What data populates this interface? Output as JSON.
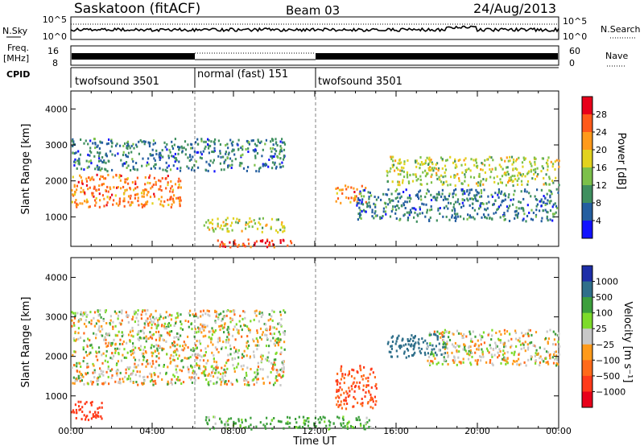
{
  "header": {
    "station": "Saskatoon (fitACF)",
    "beam": "Beam 03",
    "date": "24/Aug/2013"
  },
  "noise_panel": {
    "left_label": "N.Sky",
    "right_label": "N.Search",
    "ticks": [
      "10^5",
      "10^0"
    ]
  },
  "freq_panel": {
    "label_line1": "Freq.",
    "label_line2": "[MHz]",
    "left_ticks": [
      "16",
      "8"
    ],
    "right_ticks": [
      "60",
      "0"
    ],
    "right_label": "Nave"
  },
  "cpid": {
    "label": "CPID",
    "segments": [
      "twofsound 3501",
      "normal (fast) 151",
      "twofsound 3501"
    ]
  },
  "axes": {
    "ylabel": "Slant Range [km]",
    "xlabel": "Time UT",
    "yticks": [
      "4000",
      "3000",
      "2000",
      "1000"
    ],
    "xticks": [
      "00:00",
      "04:00",
      "08:00",
      "12:00",
      "16:00",
      "20:00",
      "00:00"
    ]
  },
  "power_colorbar": {
    "label": "Power [dB]",
    "ticks": [
      "28",
      "24",
      "20",
      "16",
      "12",
      "8",
      "4"
    ],
    "colors": [
      "#e8001a",
      "#ff5a1a",
      "#ff9a1a",
      "#e2d21e",
      "#7cc04a",
      "#3f8f5f",
      "#245ea0",
      "#1212ff"
    ]
  },
  "velocity_colorbar": {
    "label": "Velocity [m s⁻¹]",
    "ticks": [
      "1000",
      "500",
      "100",
      "25",
      "−25",
      "−100",
      "−500",
      "−1000"
    ],
    "colors": [
      "#1d2ea8",
      "#2f6f8a",
      "#3c9f3c",
      "#7ddb2a",
      "#c8c8c8",
      "#ff9a1a",
      "#ff6a1a",
      "#ff3a1a",
      "#e8001a"
    ]
  },
  "chart_data": [
    {
      "type": "heatmap",
      "title": "Power [dB]",
      "xlabel": "Time UT",
      "ylabel": "Slant Range [km]",
      "xlim": [
        0,
        24
      ],
      "ylim": [
        180,
        4500
      ],
      "echo_regions": [
        {
          "start_hr": 0.0,
          "end_hr": 5.5,
          "range_from_km": 1300,
          "range_to_km": 2200,
          "power_db": 24
        },
        {
          "start_hr": 0.0,
          "end_hr": 10.5,
          "range_from_km": 2300,
          "range_to_km": 3200,
          "power_db": 8
        },
        {
          "start_hr": 6.5,
          "end_hr": 10.5,
          "range_from_km": 600,
          "range_to_km": 1000,
          "power_db": 16
        },
        {
          "start_hr": 7.0,
          "end_hr": 11.0,
          "range_from_km": 180,
          "range_to_km": 400,
          "power_db": 28
        },
        {
          "start_hr": 13.0,
          "end_hr": 14.5,
          "range_from_km": 1400,
          "range_to_km": 1900,
          "power_db": 24
        },
        {
          "start_hr": 15.5,
          "end_hr": 24.0,
          "range_from_km": 1900,
          "range_to_km": 2700,
          "power_db": 16
        },
        {
          "start_hr": 14.0,
          "end_hr": 24.0,
          "range_from_km": 900,
          "range_to_km": 1800,
          "power_db": 8
        }
      ]
    },
    {
      "type": "heatmap",
      "title": "Velocity [m s⁻¹]",
      "xlabel": "Time UT",
      "ylabel": "Slant Range [km]",
      "xlim": [
        0,
        24
      ],
      "ylim": [
        180,
        4500
      ],
      "echo_regions": [
        {
          "start_hr": 0.0,
          "end_hr": 10.5,
          "range_from_km": 1300,
          "range_to_km": 3200,
          "velocity_ms": 0
        },
        {
          "start_hr": 0.0,
          "end_hr": 1.5,
          "range_from_km": 400,
          "range_to_km": 900,
          "velocity_ms": -500
        },
        {
          "start_hr": 6.5,
          "end_hr": 15.0,
          "range_from_km": 180,
          "range_to_km": 500,
          "velocity_ms": 100
        },
        {
          "start_hr": 13.0,
          "end_hr": 15.0,
          "range_from_km": 700,
          "range_to_km": 1800,
          "velocity_ms": -300
        },
        {
          "start_hr": 15.5,
          "end_hr": 18.5,
          "range_from_km": 2000,
          "range_to_km": 2600,
          "velocity_ms": 500
        },
        {
          "start_hr": 17.5,
          "end_hr": 24.0,
          "range_from_km": 1800,
          "range_to_km": 2700,
          "velocity_ms": 0
        }
      ]
    }
  ]
}
